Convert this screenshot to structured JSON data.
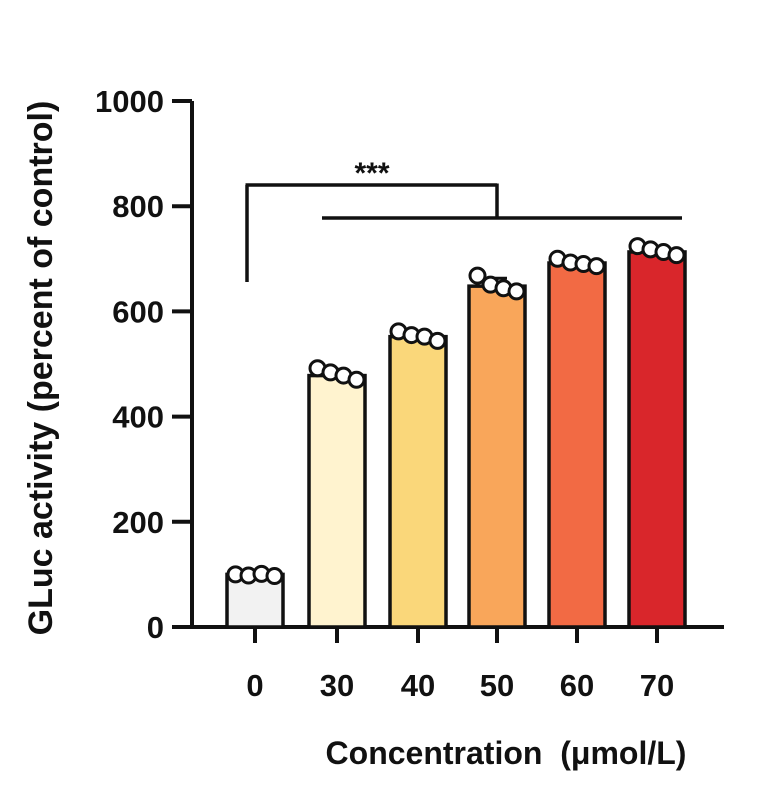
{
  "chart_data": {
    "type": "bar",
    "title": "",
    "xlabel": "Concentration  (μmol/L)",
    "ylabel": "GLuc activity (percent of control)",
    "categories": [
      "0",
      "30",
      "40",
      "50",
      "60",
      "70"
    ],
    "values": [
      100,
      478,
      552,
      648,
      692,
      713
    ],
    "ylim": [
      0,
      1000
    ],
    "yticks": [
      0,
      200,
      400,
      600,
      800,
      1000
    ],
    "error": [
      4,
      12,
      9,
      15,
      8,
      10
    ],
    "points": [
      [
        100,
        98,
        101,
        97
      ],
      [
        492,
        484,
        478,
        470
      ],
      [
        562,
        555,
        552,
        544
      ],
      [
        668,
        651,
        644,
        638
      ],
      [
        700,
        693,
        690,
        686
      ],
      [
        724,
        718,
        713,
        707
      ]
    ],
    "colors": [
      "#f2f2f2",
      "#fff3cf",
      "#fad77a",
      "#f9a65a",
      "#f26a44",
      "#d9262b"
    ],
    "significance": {
      "label": "***",
      "from": "0",
      "to": [
        "30",
        "70"
      ]
    },
    "grid": false,
    "legend": "none"
  }
}
